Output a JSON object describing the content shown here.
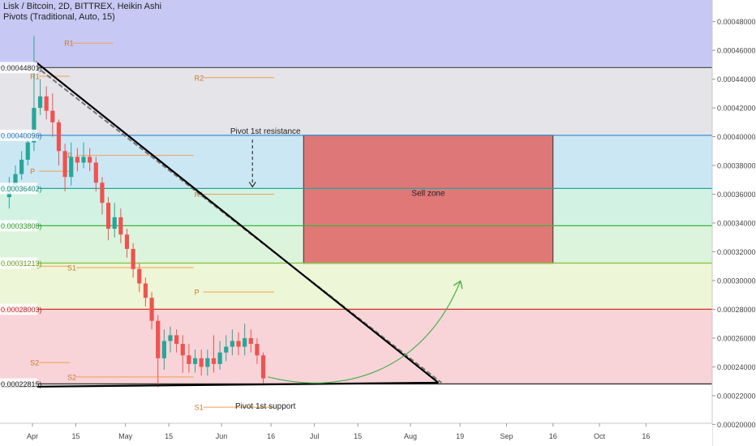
{
  "header": {
    "title": "Lisk / Bitcoin, 2D, BITTREX, Heikin Ashi",
    "indicator": "Pivots (Traditional, Auto, 15)"
  },
  "colors": {
    "candle_up": "#26a69a",
    "candle_down": "#ef5350",
    "pivot_line": "#f0a050",
    "trendline": "#000000",
    "arrow": "#4caf50",
    "sell_zone_fill": "#e06a6a",
    "sell_zone_border": "#333333"
  },
  "chart_data": {
    "type": "candlestick",
    "x_axis": {
      "labels": [
        "Apr",
        "15",
        "May",
        "15",
        "Jun",
        "16",
        "Jul",
        "15",
        "Aug",
        "19",
        "Sep",
        "16",
        "Oct",
        "16"
      ],
      "positions": [
        0,
        14,
        30,
        44,
        61,
        77,
        91,
        105,
        122,
        138,
        153,
        168,
        183,
        198
      ]
    },
    "y_axis": {
      "range": [
        0.000185,
        0.000495
      ],
      "ticks": [
        "0.00048000",
        "0.00046000",
        "0.00044000",
        "0.00042000",
        "0.00040000",
        "0.00038000",
        "0.00036000",
        "0.00034000",
        "0.00032000",
        "0.00030000",
        "0.00028000",
        "0.00026000",
        "0.00024000",
        "0.00022000",
        "0.00020000"
      ]
    },
    "bands": [
      {
        "from": 0.000448,
        "to": 0.000495,
        "color": "#c8c8f4"
      },
      {
        "from": 0.000401,
        "to": 0.000448,
        "color": "#e4e4e9"
      },
      {
        "from": 0.000364,
        "to": 0.000401,
        "color": "#cce7f4"
      },
      {
        "from": 0.000338,
        "to": 0.000364,
        "color": "#d2f2e4"
      },
      {
        "from": 0.000312,
        "to": 0.000338,
        "color": "#dcf4dc"
      },
      {
        "from": 0.00028,
        "to": 0.000312,
        "color": "#edf6d6"
      },
      {
        "from": 0.000228,
        "to": 0.00028,
        "color": "#f8d4d8"
      }
    ],
    "levels": [
      {
        "label": "0.00044801",
        "value": 0.00044801,
        "color": "#555555",
        "tag_color": "#333333"
      },
      {
        "label": "0.00040096",
        "value": 0.00040096,
        "color": "#3a8fd4",
        "tag_color": "#1e6fb0"
      },
      {
        "label": "0.00036402",
        "value": 0.00036402,
        "color": "#26a69a",
        "tag_color": "#1a8a7e"
      },
      {
        "label": "0.00033808",
        "value": 0.00033808,
        "color": "#3cb43c",
        "tag_color": "#2a9a2a"
      },
      {
        "label": "0.00031213",
        "value": 0.00031213,
        "color": "#8bc34a",
        "tag_color": "#6a9a2a"
      },
      {
        "label": "0.00028003",
        "value": 0.00028003,
        "color": "#d03030",
        "tag_color": "#c02020"
      },
      {
        "label": "0.00022815",
        "value": 0.00022815,
        "color": "#333333",
        "tag_color": "#222222"
      }
    ],
    "pivot_labels": [
      {
        "text": "R1",
        "x": 10,
        "y": 0.000465,
        "x2": 26
      },
      {
        "text": "R1",
        "x": -1,
        "y": 0.000442,
        "x2": 12
      },
      {
        "text": "R2",
        "x": 52,
        "y": 0.000441,
        "x2": 78
      },
      {
        "text": "P",
        "x": 11,
        "y": 0.000387,
        "x2": 52
      },
      {
        "text": "P",
        "x": -1,
        "y": 0.000376,
        "x2": 12
      },
      {
        "text": "R1",
        "x": 52,
        "y": 0.00036,
        "x2": 78
      },
      {
        "text": "S1",
        "x": -1,
        "y": 0.00031,
        "x2": 12
      },
      {
        "text": "S1",
        "x": 11,
        "y": 0.000309,
        "x2": 52
      },
      {
        "text": "P",
        "x": 52,
        "y": 0.000292,
        "x2": 78
      },
      {
        "text": "S2",
        "x": -1,
        "y": 0.000243,
        "x2": 12
      },
      {
        "text": "S2",
        "x": 11,
        "y": 0.000233,
        "x2": 52
      },
      {
        "text": "S1",
        "x": 52,
        "y": 0.000212,
        "x2": 78
      }
    ],
    "candles": [
      [
        -7.5,
        0.000358,
        0.000366,
        0.00035,
        0.000372
      ],
      [
        -5.5,
        0.000366,
        0.000374,
        0.000362,
        0.00038
      ],
      [
        -3.5,
        0.000374,
        0.000384,
        0.00037,
        0.00039
      ],
      [
        -1.5,
        0.000384,
        0.000396,
        0.00038,
        0.000402
      ],
      [
        0.5,
        0.000396,
        0.00042,
        0.00039,
        0.00047
      ],
      [
        2.5,
        0.00042,
        0.000428,
        0.000415,
        0.00044
      ],
      [
        4.5,
        0.000428,
        0.000418,
        0.000412,
        0.000435
      ],
      [
        6.5,
        0.000418,
        0.00041,
        0.0004,
        0.00043
      ],
      [
        8.5,
        0.00041,
        0.00039,
        0.00038,
        0.000412
      ],
      [
        10.5,
        0.00039,
        0.000372,
        0.000362,
        0.000395
      ],
      [
        12.5,
        0.000372,
        0.000386,
        0.000366,
        0.000396
      ],
      [
        14.5,
        0.000386,
        0.000382,
        0.000376,
        0.000392
      ],
      [
        16.5,
        0.000382,
        0.000386,
        0.000378,
        0.000396
      ],
      [
        18.5,
        0.000386,
        0.000382,
        0.000376,
        0.000392
      ],
      [
        20.5,
        0.000382,
        0.000368,
        0.000362,
        0.000386
      ],
      [
        22.5,
        0.000368,
        0.000354,
        0.000346,
        0.000372
      ],
      [
        24.5,
        0.000354,
        0.000336,
        0.000328,
        0.000358
      ],
      [
        26.5,
        0.000336,
        0.000344,
        0.00033,
        0.000354
      ],
      [
        28.5,
        0.000344,
        0.000332,
        0.000326,
        0.00035
      ],
      [
        30.5,
        0.000332,
        0.000322,
        0.000316,
        0.000336
      ],
      [
        32.5,
        0.000322,
        0.000308,
        0.000302,
        0.000326
      ],
      [
        34.5,
        0.000308,
        0.000298,
        0.000292,
        0.000312
      ],
      [
        36.5,
        0.000298,
        0.000288,
        0.000282,
        0.000302
      ],
      [
        38.5,
        0.000288,
        0.000272,
        0.000266,
        0.000292
      ],
      [
        40.5,
        0.000272,
        0.000246,
        0.000226,
        0.000276
      ],
      [
        42.5,
        0.000246,
        0.000258,
        0.000238,
        0.000266
      ],
      [
        44.5,
        0.000258,
        0.000262,
        0.00025,
        0.000268
      ],
      [
        46.5,
        0.000262,
        0.000256,
        0.00025,
        0.000266
      ],
      [
        48.5,
        0.000256,
        0.000248,
        0.000236,
        0.000262
      ],
      [
        50.5,
        0.000248,
        0.000242,
        0.000236,
        0.000256
      ],
      [
        52.5,
        0.000242,
        0.000246,
        0.000236,
        0.000252
      ],
      [
        54.5,
        0.000246,
        0.00024,
        0.000234,
        0.000252
      ],
      [
        56.5,
        0.00024,
        0.000246,
        0.000234,
        0.000252
      ],
      [
        58.5,
        0.000246,
        0.000242,
        0.000236,
        0.000262
      ],
      [
        60.5,
        0.000242,
        0.00025,
        0.000238,
        0.000258
      ],
      [
        62.5,
        0.00025,
        0.000254,
        0.000244,
        0.000262
      ],
      [
        64.5,
        0.000254,
        0.000258,
        0.000248,
        0.000266
      ],
      [
        66.5,
        0.000258,
        0.000254,
        0.000248,
        0.000264
      ],
      [
        68.5,
        0.000254,
        0.00026,
        0.000248,
        0.00027
      ],
      [
        70.5,
        0.00026,
        0.000256,
        0.00025,
        0.000266
      ],
      [
        72.5,
        0.000256,
        0.000248,
        0.000242,
        0.00026
      ],
      [
        74.5,
        0.000248,
        0.000232,
        0.000228,
        0.00025
      ]
    ],
    "trendline": {
      "x1": 1,
      "y1": 0.000452,
      "x2": 131,
      "y2": 0.000229
    },
    "dashed_trendline": {
      "x1": 1,
      "y1": 0.000449,
      "x2": 132,
      "y2": 0.000229
    },
    "support_line": {
      "x1": -10,
      "y1": 0.000226,
      "x2": 131,
      "y2": 0.000229
    },
    "sell_zone": {
      "x1": 87.5,
      "x2": 168,
      "y_top": 0.000401,
      "y_bottom": 0.000312,
      "label": "Sell zone"
    },
    "annotations": [
      {
        "text": "Pivot 1st resistance",
        "x": 71,
        "y": 0.000402
      },
      {
        "text": "Pivot 1st support",
        "x": 71,
        "y": 0.000211
      }
    ],
    "resistance_arrow": {
      "x": 71,
      "y_from": 0.000398,
      "y_to": 0.000364
    },
    "curved_arrow": {
      "x1": 76,
      "y1": 0.000233,
      "cx1": 100,
      "cy1": 0.00022,
      "cx2": 126,
      "cy2": 0.000236,
      "x2": 138,
      "y2": 0.000299
    }
  }
}
